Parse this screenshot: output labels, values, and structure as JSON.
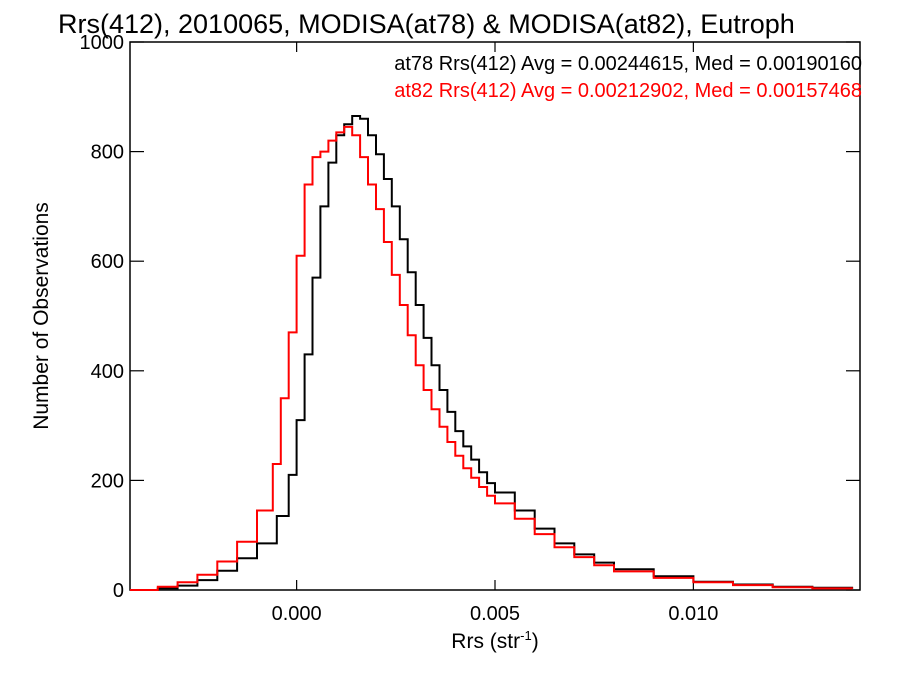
{
  "chart_data": {
    "type": "line",
    "title": "Rrs(412), 2010065, MODISA(at78) & MODISA(at82), Eutroph",
    "xlabel": "Rrs (str",
    "xlabel_sup": "-1",
    "xlabel_close": ")",
    "ylabel": "Number of Observations",
    "xlim": [
      -0.0042,
      0.0142
    ],
    "ylim": [
      0,
      1000
    ],
    "xticks": [
      0.0,
      0.005,
      0.01
    ],
    "xtick_labels": [
      "0.000",
      "0.005",
      "0.010"
    ],
    "yticks": [
      0,
      200,
      400,
      600,
      800,
      1000
    ],
    "ytick_labels": [
      "0",
      "200",
      "400",
      "600",
      "800",
      "1000"
    ],
    "grid": false,
    "legend_position": "top-right",
    "series": [
      {
        "name": "at78",
        "legend_text": "at78 Rrs(412) Avg = 0.00244615, Med = 0.00190160",
        "color": "#000000",
        "points": [
          [
            -0.0042,
            0
          ],
          [
            -0.0035,
            3
          ],
          [
            -0.003,
            8
          ],
          [
            -0.0025,
            18
          ],
          [
            -0.002,
            35
          ],
          [
            -0.0015,
            58
          ],
          [
            -0.001,
            85
          ],
          [
            -0.0005,
            135
          ],
          [
            -0.0002,
            210
          ],
          [
            0.0,
            310
          ],
          [
            0.0002,
            430
          ],
          [
            0.0004,
            570
          ],
          [
            0.0006,
            700
          ],
          [
            0.0008,
            780
          ],
          [
            0.001,
            830
          ],
          [
            0.0012,
            850
          ],
          [
            0.0014,
            865
          ],
          [
            0.0016,
            860
          ],
          [
            0.0018,
            830
          ],
          [
            0.002,
            795
          ],
          [
            0.0022,
            750
          ],
          [
            0.0024,
            700
          ],
          [
            0.0026,
            640
          ],
          [
            0.0028,
            580
          ],
          [
            0.003,
            520
          ],
          [
            0.0032,
            460
          ],
          [
            0.0034,
            410
          ],
          [
            0.0036,
            365
          ],
          [
            0.0038,
            325
          ],
          [
            0.004,
            290
          ],
          [
            0.0042,
            262
          ],
          [
            0.0044,
            238
          ],
          [
            0.0046,
            215
          ],
          [
            0.0048,
            195
          ],
          [
            0.005,
            178
          ],
          [
            0.0055,
            145
          ],
          [
            0.006,
            112
          ],
          [
            0.0065,
            85
          ],
          [
            0.007,
            65
          ],
          [
            0.0075,
            50
          ],
          [
            0.008,
            38
          ],
          [
            0.009,
            25
          ],
          [
            0.01,
            15
          ],
          [
            0.011,
            10
          ],
          [
            0.012,
            6
          ],
          [
            0.013,
            4
          ],
          [
            0.014,
            2
          ]
        ]
      },
      {
        "name": "at82",
        "legend_text": "at82 Rrs(412) Avg = 0.00212902, Med = 0.00157468",
        "color": "#ff0000",
        "points": [
          [
            -0.0042,
            0
          ],
          [
            -0.0035,
            6
          ],
          [
            -0.003,
            14
          ],
          [
            -0.0025,
            28
          ],
          [
            -0.002,
            52
          ],
          [
            -0.0015,
            88
          ],
          [
            -0.001,
            145
          ],
          [
            -0.0006,
            230
          ],
          [
            -0.0004,
            350
          ],
          [
            -0.0002,
            470
          ],
          [
            0.0,
            610
          ],
          [
            0.0002,
            740
          ],
          [
            0.0004,
            790
          ],
          [
            0.0006,
            800
          ],
          [
            0.0008,
            820
          ],
          [
            0.001,
            835
          ],
          [
            0.0012,
            845
          ],
          [
            0.0014,
            830
          ],
          [
            0.0016,
            790
          ],
          [
            0.0018,
            740
          ],
          [
            0.002,
            695
          ],
          [
            0.0022,
            635
          ],
          [
            0.0024,
            575
          ],
          [
            0.0026,
            520
          ],
          [
            0.0028,
            465
          ],
          [
            0.003,
            410
          ],
          [
            0.0032,
            365
          ],
          [
            0.0034,
            330
          ],
          [
            0.0036,
            298
          ],
          [
            0.0038,
            270
          ],
          [
            0.004,
            245
          ],
          [
            0.0042,
            222
          ],
          [
            0.0044,
            205
          ],
          [
            0.0046,
            188
          ],
          [
            0.0048,
            172
          ],
          [
            0.005,
            158
          ],
          [
            0.0055,
            130
          ],
          [
            0.006,
            102
          ],
          [
            0.0065,
            78
          ],
          [
            0.007,
            60
          ],
          [
            0.0075,
            45
          ],
          [
            0.008,
            34
          ],
          [
            0.009,
            22
          ],
          [
            0.01,
            14
          ],
          [
            0.011,
            9
          ],
          [
            0.012,
            5
          ],
          [
            0.013,
            3
          ],
          [
            0.014,
            2
          ]
        ]
      }
    ]
  }
}
